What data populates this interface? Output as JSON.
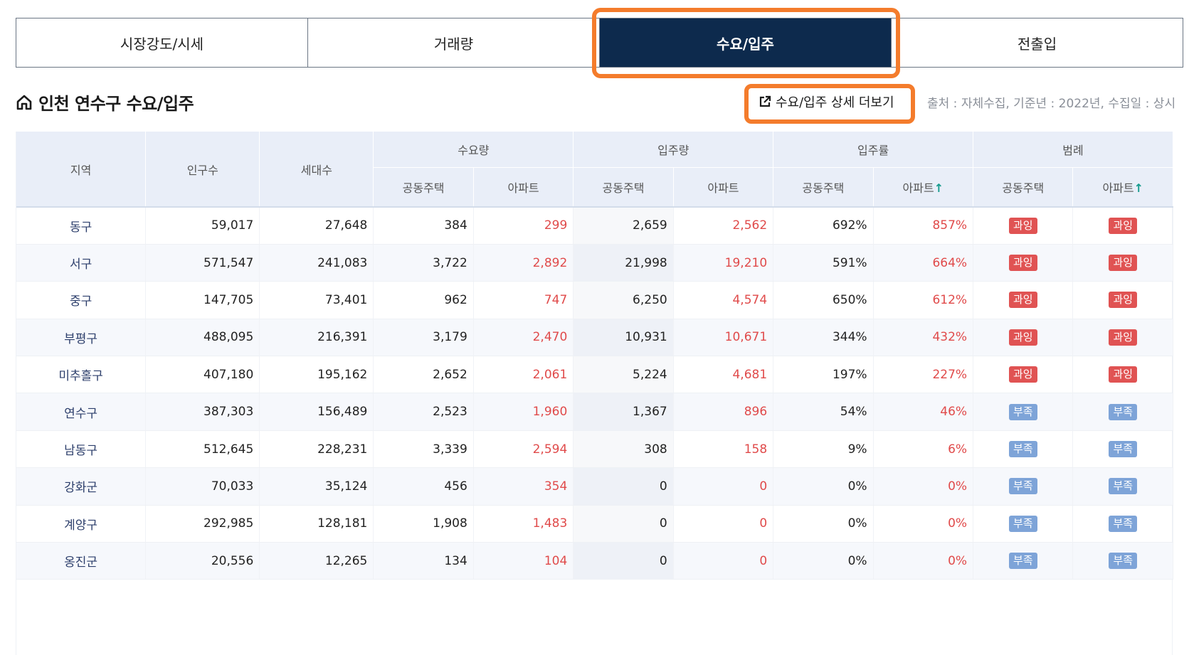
{
  "tabs": [
    {
      "label": "시장강도/시세",
      "active": false
    },
    {
      "label": "거래량",
      "active": false
    },
    {
      "label": "수요/입주",
      "active": true
    },
    {
      "label": "전출입",
      "active": false
    }
  ],
  "section": {
    "title": "인천 연수구 수요/입주",
    "more_button": "수요/입주 상세 더보기",
    "source": "출처 : 자체수집, 기준년 : 2022년, 수집일 : 상시"
  },
  "table": {
    "headers": {
      "region": "지역",
      "population": "인구수",
      "households": "세대수",
      "demand": "수요량",
      "supply": "입주량",
      "rate": "입주률",
      "legend": "범례",
      "sub_joint": "공동주택",
      "sub_apt": "아파트",
      "arrow": "↑"
    },
    "rows": [
      {
        "region": "동구",
        "population": "59,017",
        "households": "27,648",
        "demand_joint": "384",
        "demand_apt": "299",
        "supply_joint": "2,659",
        "supply_apt": "2,562",
        "rate_joint": "692%",
        "rate_apt": "857%",
        "legend_joint": "과잉",
        "legend_apt": "과잉"
      },
      {
        "region": "서구",
        "population": "571,547",
        "households": "241,083",
        "demand_joint": "3,722",
        "demand_apt": "2,892",
        "supply_joint": "21,998",
        "supply_apt": "19,210",
        "rate_joint": "591%",
        "rate_apt": "664%",
        "legend_joint": "과잉",
        "legend_apt": "과잉"
      },
      {
        "region": "중구",
        "population": "147,705",
        "households": "73,401",
        "demand_joint": "962",
        "demand_apt": "747",
        "supply_joint": "6,250",
        "supply_apt": "4,574",
        "rate_joint": "650%",
        "rate_apt": "612%",
        "legend_joint": "과잉",
        "legend_apt": "과잉"
      },
      {
        "region": "부평구",
        "population": "488,095",
        "households": "216,391",
        "demand_joint": "3,179",
        "demand_apt": "2,470",
        "supply_joint": "10,931",
        "supply_apt": "10,671",
        "rate_joint": "344%",
        "rate_apt": "432%",
        "legend_joint": "과잉",
        "legend_apt": "과잉"
      },
      {
        "region": "미추홀구",
        "population": "407,180",
        "households": "195,162",
        "demand_joint": "2,652",
        "demand_apt": "2,061",
        "supply_joint": "5,224",
        "supply_apt": "4,681",
        "rate_joint": "197%",
        "rate_apt": "227%",
        "legend_joint": "과잉",
        "legend_apt": "과잉"
      },
      {
        "region": "연수구",
        "population": "387,303",
        "households": "156,489",
        "demand_joint": "2,523",
        "demand_apt": "1,960",
        "supply_joint": "1,367",
        "supply_apt": "896",
        "rate_joint": "54%",
        "rate_apt": "46%",
        "legend_joint": "부족",
        "legend_apt": "부족"
      },
      {
        "region": "남동구",
        "population": "512,645",
        "households": "228,231",
        "demand_joint": "3,339",
        "demand_apt": "2,594",
        "supply_joint": "308",
        "supply_apt": "158",
        "rate_joint": "9%",
        "rate_apt": "6%",
        "legend_joint": "부족",
        "legend_apt": "부족"
      },
      {
        "region": "강화군",
        "population": "70,033",
        "households": "35,124",
        "demand_joint": "456",
        "demand_apt": "354",
        "supply_joint": "0",
        "supply_apt": "0",
        "rate_joint": "0%",
        "rate_apt": "0%",
        "legend_joint": "부족",
        "legend_apt": "부족"
      },
      {
        "region": "계양구",
        "population": "292,985",
        "households": "128,181",
        "demand_joint": "1,908",
        "demand_apt": "1,483",
        "supply_joint": "0",
        "supply_apt": "0",
        "rate_joint": "0%",
        "rate_apt": "0%",
        "legend_joint": "부족",
        "legend_apt": "부족"
      },
      {
        "region": "옹진군",
        "population": "20,556",
        "households": "12,265",
        "demand_joint": "134",
        "demand_apt": "104",
        "supply_joint": "0",
        "supply_apt": "0",
        "rate_joint": "0%",
        "rate_apt": "0%",
        "legend_joint": "부족",
        "legend_apt": "부족"
      }
    ]
  },
  "colors": {
    "active_tab": "#0d2a4d",
    "highlight": "#f47c2c",
    "over_badge": "#e05353",
    "short_badge": "#7ea4d8",
    "red_text": "#e04a4a",
    "header_bg": "#e9eef8"
  },
  "icons": {
    "section": "home-icon",
    "more_button": "external-link-icon"
  }
}
